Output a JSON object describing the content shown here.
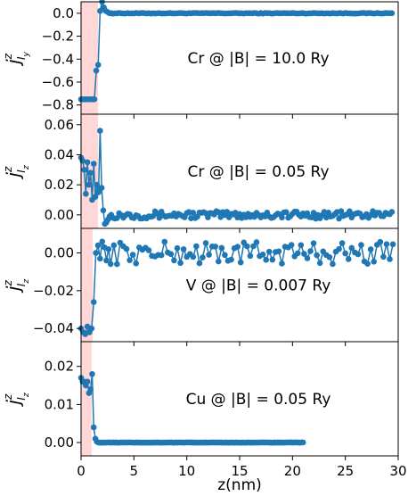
{
  "colors": {
    "series": "#1f77b4",
    "shade": "#ffd7d7",
    "axis": "#000000"
  },
  "chart_data": [
    {
      "type": "line",
      "annotation": "Cr @ |B| = 10.0 Ry",
      "ylabel": {
        "base": "j",
        "sup": "z",
        "sub": "I",
        "subsub": "y"
      },
      "xlim": [
        0,
        30
      ],
      "ylim": [
        -0.88,
        0.1
      ],
      "xticks": [
        "0",
        "5",
        "10",
        "15",
        "20",
        "25",
        "30"
      ],
      "yticks": [
        {
          "v": 0.0,
          "label": "0.0"
        },
        {
          "v": -0.2,
          "label": "−0.2"
        },
        {
          "v": -0.4,
          "label": "−0.4"
        },
        {
          "v": -0.6,
          "label": "−0.6"
        },
        {
          "v": -0.8,
          "label": "−0.8"
        }
      ],
      "shade": [
        0,
        1.6
      ],
      "x": [
        0.0,
        0.18,
        0.36,
        0.54,
        0.72,
        0.9,
        1.08,
        1.26,
        1.44,
        1.62,
        1.8,
        1.98,
        2.16,
        2.34,
        2.52,
        2.7,
        2.88
      ],
      "y": [
        -0.75,
        -0.75,
        -0.75,
        -0.75,
        -0.75,
        -0.75,
        -0.75,
        -0.75,
        -0.5,
        -0.45,
        0.02,
        0.1,
        0.05,
        0.02,
        0.01,
        0.0,
        0.0
      ],
      "tail": {
        "start": 3.0,
        "end": 29.4,
        "step": 0.2,
        "center": 0.0,
        "amp": 0.003
      }
    },
    {
      "type": "line",
      "annotation": "Cr @ |B| = 0.05 Ry",
      "ylabel": {
        "base": "j",
        "sup": "z",
        "sub": "I",
        "subsub": "z"
      },
      "xlim": [
        0,
        30
      ],
      "ylim": [
        -0.009,
        0.067
      ],
      "xticks": [
        "0",
        "5",
        "10",
        "15",
        "20",
        "25",
        "30"
      ],
      "yticks": [
        {
          "v": 0.06,
          "label": "0.06"
        },
        {
          "v": 0.04,
          "label": "0.04"
        },
        {
          "v": 0.02,
          "label": "0.02"
        },
        {
          "v": 0.0,
          "label": "0.00"
        }
      ],
      "shade": [
        0,
        1.6
      ],
      "x": [
        0.0,
        0.15,
        0.3,
        0.45,
        0.6,
        0.75,
        0.9,
        1.05,
        1.2,
        1.35,
        1.5,
        1.65,
        1.8,
        1.95,
        2.1,
        2.25,
        2.4,
        2.55,
        2.7,
        2.85,
        3.0
      ],
      "y": [
        0.038,
        0.036,
        0.03,
        0.014,
        0.035,
        0.02,
        0.028,
        0.01,
        0.034,
        0.012,
        0.02,
        0.015,
        0.056,
        0.018,
        0.003,
        -0.006,
        -0.005,
        -0.003,
        -0.001,
        0.0,
        -0.002
      ],
      "tail": {
        "start": 3.2,
        "end": 29.4,
        "step": 0.2,
        "center": 0.0,
        "amp": 0.0025
      }
    },
    {
      "type": "line",
      "annotation": "V @ |B| = 0.007 Ry",
      "ylabel": {
        "base": "j",
        "sup": "z",
        "sub": "I",
        "subsub": "z"
      },
      "xlim": [
        0,
        30
      ],
      "ylim": [
        -0.047,
        0.013
      ],
      "xticks": [
        "0",
        "5",
        "10",
        "15",
        "20",
        "25",
        "30"
      ],
      "yticks": [
        {
          "v": 0.0,
          "label": "0.00"
        },
        {
          "v": -0.02,
          "label": "−0.02"
        },
        {
          "v": -0.04,
          "label": "−0.04"
        }
      ],
      "shade": [
        0,
        1.1
      ],
      "x": [
        0.0,
        0.2,
        0.4,
        0.6,
        0.8,
        1.0,
        1.2,
        1.4,
        1.6,
        1.8,
        2.0,
        2.2,
        2.4,
        2.6
      ],
      "y": [
        -0.04,
        -0.042,
        -0.043,
        -0.039,
        -0.042,
        -0.04,
        -0.026,
        0.0,
        0.004,
        -0.003,
        0.006,
        0.003,
        -0.004,
        0.002
      ],
      "tail": {
        "start": 2.8,
        "end": 29.5,
        "step": 0.3,
        "center": 0.0,
        "amp": 0.006
      }
    },
    {
      "type": "line",
      "annotation": "Cu @ |B| = 0.05 Ry",
      "ylabel": {
        "base": "j",
        "sup": "z",
        "sub": "I",
        "subsub": "z"
      },
      "xlim": [
        0,
        30
      ],
      "ylim": [
        -0.0035,
        0.0265
      ],
      "xticks": [
        "0",
        "5",
        "10",
        "15",
        "20",
        "25",
        "30"
      ],
      "yticks": [
        {
          "v": 0.02,
          "label": "0.02"
        },
        {
          "v": 0.01,
          "label": "0.01"
        },
        {
          "v": 0.0,
          "label": "0.00"
        }
      ],
      "shade": [
        0,
        1.0
      ],
      "x": [
        0.0,
        0.15,
        0.3,
        0.45,
        0.6,
        0.75,
        0.9,
        1.05,
        1.2,
        1.35,
        1.5,
        1.65
      ],
      "y": [
        0.017,
        0.016,
        0.016,
        0.015,
        0.016,
        0.013,
        0.014,
        0.018,
        0.004,
        0.001,
        0.0002,
        0.0
      ],
      "tail": {
        "start": 1.8,
        "end": 21.0,
        "step": 0.15,
        "center": 0.0,
        "amp": 4e-05
      }
    }
  ],
  "xlabel": "z(nm)"
}
